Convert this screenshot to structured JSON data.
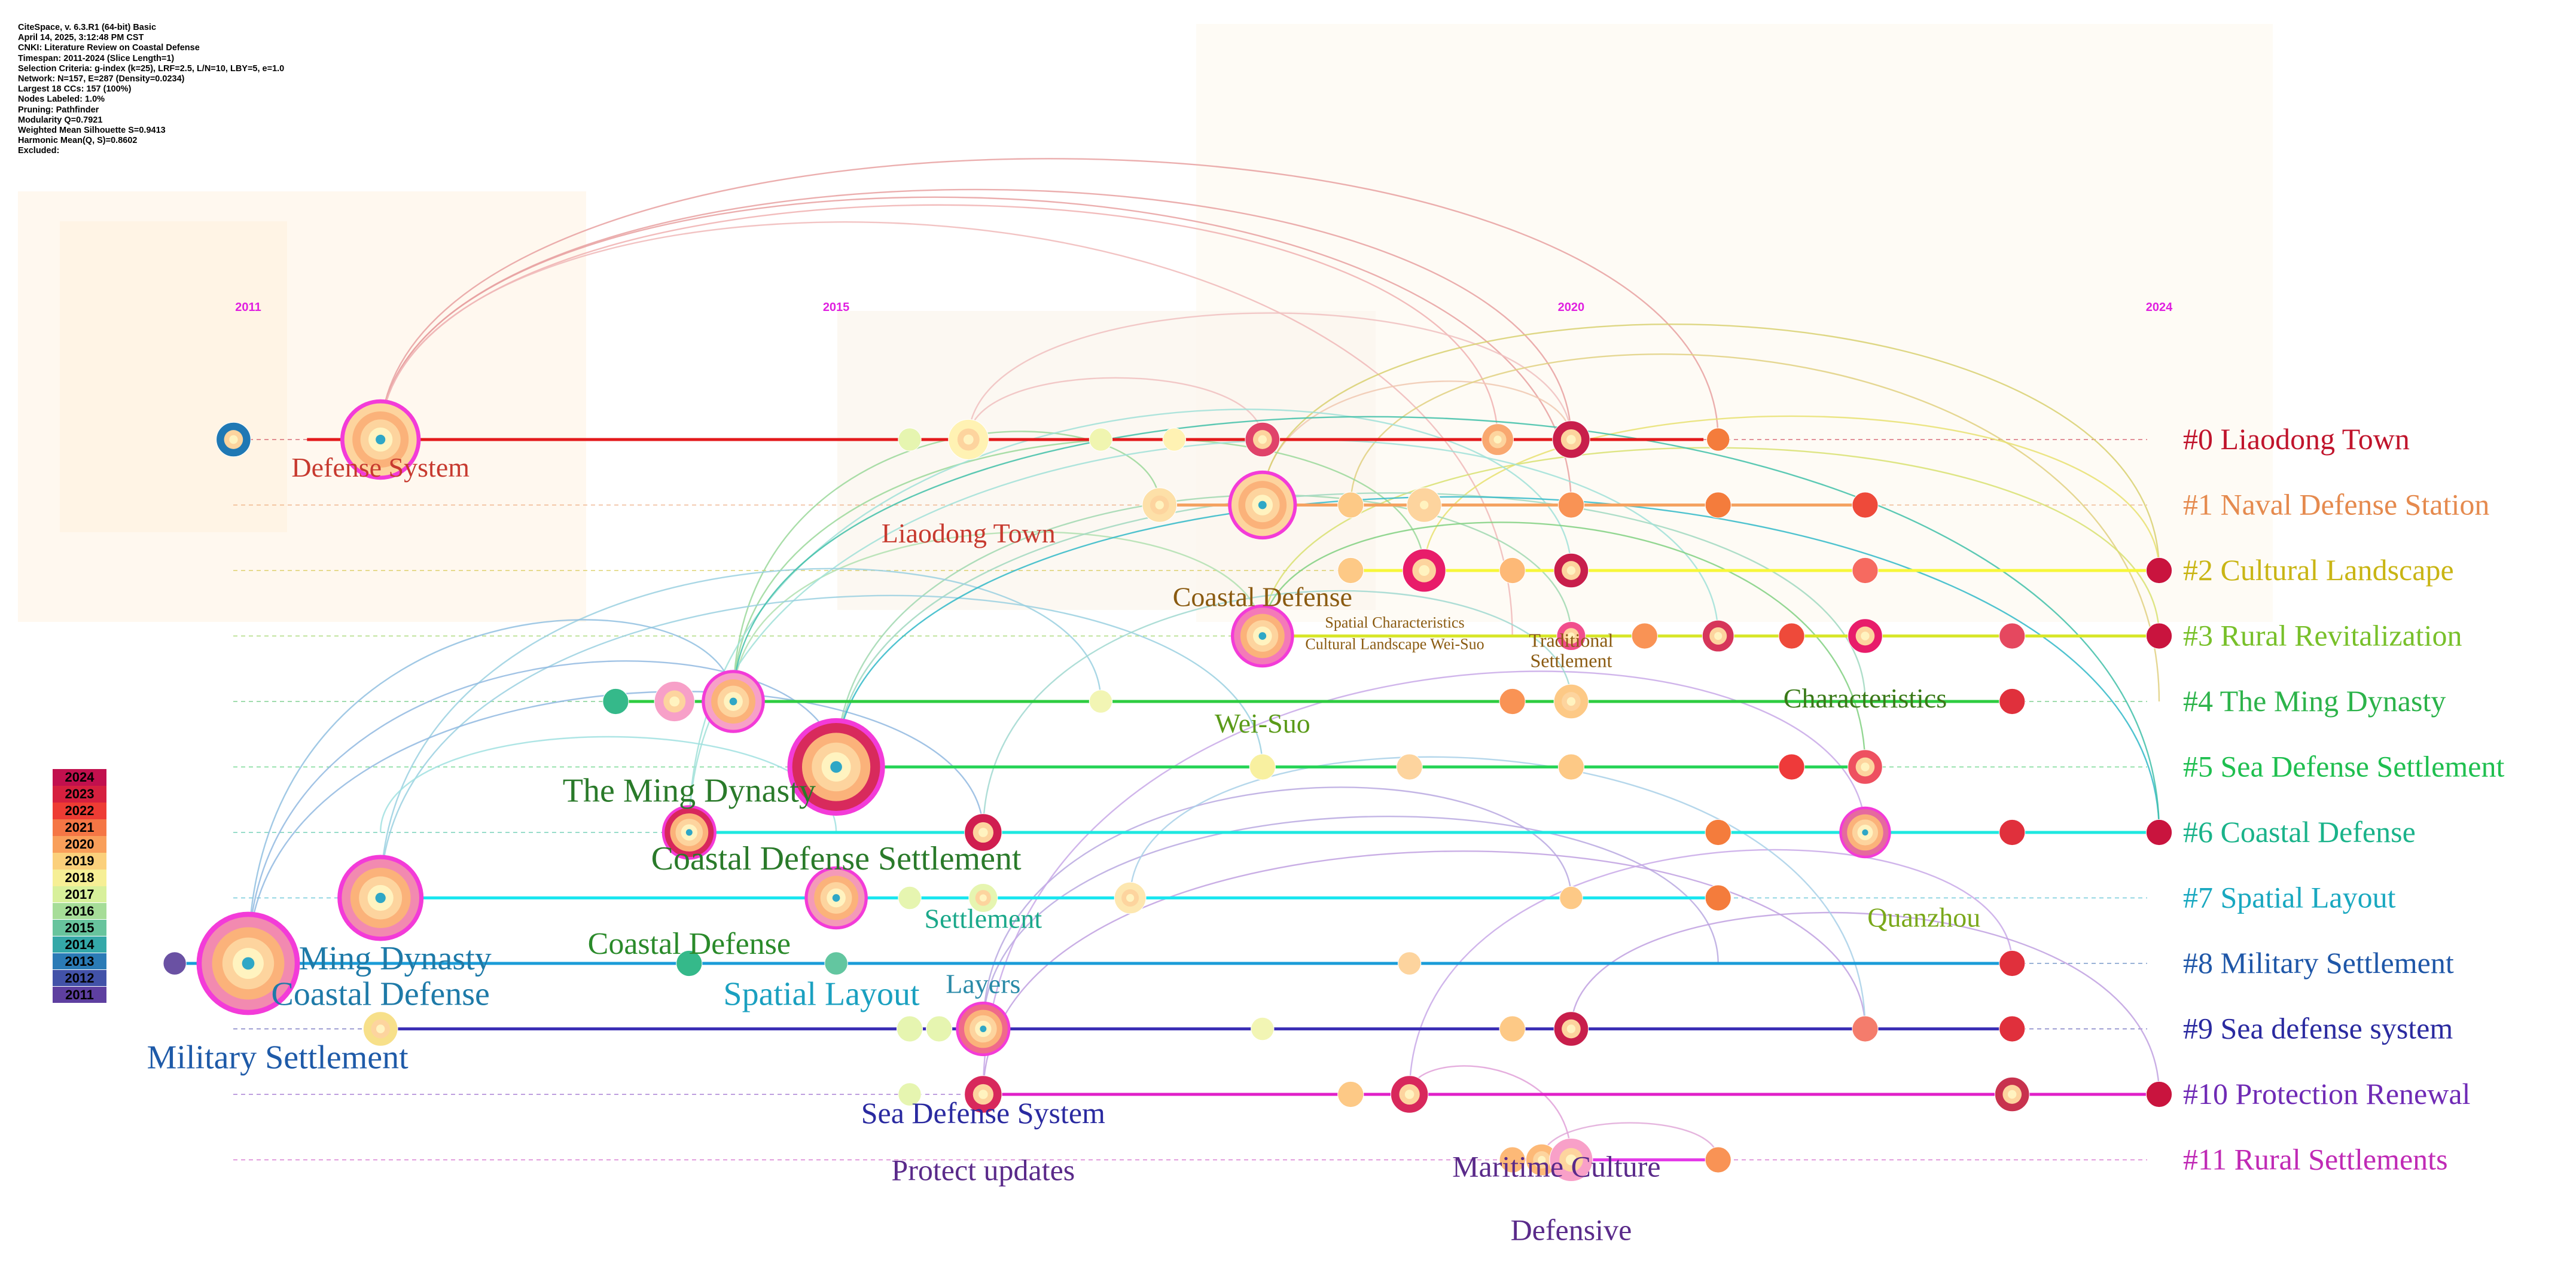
{
  "meta_lines": [
    "CiteSpace, v. 6.3.R1 (64-bit) Basic",
    "April 14, 2025, 3:12:48 PM CST",
    "CNKI: Literature Review on Coastal Defense",
    "Timespan: 2011-2024 (Slice Length=1)",
    "Selection Criteria: g-index (k=25), LRF=2.5, L/N=10, LBY=5, e=1.0",
    "Network: N=157, E=287 (Density=0.0234)",
    "Largest 18 CCs: 157 (100%)",
    "Nodes Labeled: 1.0%",
    "Pruning: Pathfinder",
    "Modularity Q=0.7921",
    "Weighted Mean Silhouette S=0.9413",
    "Harmonic Mean(Q, S)=0.8602",
    "Excluded:"
  ],
  "chart_data": {
    "type": "timeline",
    "x_ticks": [
      2011,
      2015,
      2020,
      2024
    ],
    "xlim": [
      2011,
      2024
    ],
    "clusters": [
      {
        "id": "#0 Liaodong Town",
        "color": "#c0142c"
      },
      {
        "id": "#1 Naval Defense Station",
        "color": "#e58a4e"
      },
      {
        "id": "#2 Cultural Landscape",
        "color": "#c9b514"
      },
      {
        "id": "#3 Rural Revitalization",
        "color": "#78c02a"
      },
      {
        "id": "#4 The Ming Dynasty",
        "color": "#2cb34a"
      },
      {
        "id": "#5 Sea Defense Settlement",
        "color": "#1fbf4f"
      },
      {
        "id": "#6 Coastal Defense",
        "color": "#1ab38a"
      },
      {
        "id": "#7 Spatial Layout",
        "color": "#19a8c0"
      },
      {
        "id": "#8 Military Settlement",
        "color": "#1f57a8"
      },
      {
        "id": "#9 Sea defense system",
        "color": "#2a2aa0"
      },
      {
        "id": "#10 Protection Renewal",
        "color": "#6f2ab5"
      },
      {
        "id": "#11 Rural Settlements",
        "color": "#c02ab5"
      }
    ],
    "rows": [
      {
        "line": "#e31a1c",
        "from": 2011.4,
        "to": 2020.9,
        "nodes": [
          [
            2010.9,
            "#1f78b4",
            12
          ],
          [
            2011.9,
            "#fdd49e",
            28
          ],
          [
            2015.5,
            "#e6f5b0",
            8
          ],
          [
            2015.9,
            "#fff2b3",
            14
          ],
          [
            2016.8,
            "#f0f5b0",
            8
          ],
          [
            2017.3,
            "#fff2b3",
            8
          ],
          [
            2017.9,
            "#e0436a",
            12
          ],
          [
            2019.5,
            "#f9a870",
            11
          ],
          [
            2020.0,
            "#c81e4b",
            13
          ],
          [
            2021.0,
            "#f47c3c",
            8
          ]
        ]
      },
      {
        "line": "#f4a261",
        "from": 2017.1,
        "to": 2022.0,
        "nodes": [
          [
            2017.2,
            "#fde0a8",
            12
          ],
          [
            2017.9,
            "#fdd49e",
            24
          ],
          [
            2018.5,
            "#fdc986",
            9
          ],
          [
            2019.0,
            "#fdd49e",
            12
          ],
          [
            2020.0,
            "#f99355",
            9
          ],
          [
            2021.0,
            "#f47c3c",
            9
          ],
          [
            2022.0,
            "#ee4a3a",
            9
          ]
        ]
      },
      {
        "line": "#f7f73a",
        "from": 2018.5,
        "to": 2024.0,
        "nodes": [
          [
            2018.5,
            "#fdc986",
            9
          ],
          [
            2019.0,
            "#e81c6a",
            15
          ],
          [
            2019.6,
            "#fdb977",
            9
          ],
          [
            2020.0,
            "#c81e4b",
            12
          ],
          [
            2022.0,
            "#f66a60",
            9
          ],
          [
            2024.0,
            "#c9143e",
            9
          ]
        ]
      },
      {
        "line": "#d8e62a",
        "from": 2017.9,
        "to": 2024.0,
        "nodes": [
          [
            2017.9,
            "#f47ab8",
            22
          ],
          [
            2020.0,
            "#f14e8c",
            10
          ],
          [
            2020.5,
            "#f99355",
            9
          ],
          [
            2021.0,
            "#d6365a",
            11
          ],
          [
            2021.5,
            "#ee4a3a",
            9
          ],
          [
            2022.0,
            "#e81c6a",
            12
          ],
          [
            2023.0,
            "#e5485f",
            9
          ],
          [
            2024.0,
            "#c9143e",
            9
          ]
        ]
      },
      {
        "line": "#2ecc40",
        "from": 2013.5,
        "to": 2023.0,
        "nodes": [
          [
            2013.5,
            "#35b98a",
            9
          ],
          [
            2013.9,
            "#f7a0c8",
            14
          ],
          [
            2014.3,
            "#f7a0c8",
            22
          ],
          [
            2016.8,
            "#f2f5b4",
            8
          ],
          [
            2019.6,
            "#f99355",
            9
          ],
          [
            2020.0,
            "#fdc986",
            12
          ],
          [
            2023.0,
            "#e0303c",
            9
          ]
        ]
      },
      {
        "line": "#28d458",
        "from": 2015.0,
        "to": 2022.0,
        "nodes": [
          [
            2015.0,
            "#d82a5c",
            34
          ],
          [
            2017.9,
            "#f8f0a0",
            9
          ],
          [
            2018.9,
            "#fdd49e",
            9
          ],
          [
            2020.0,
            "#fdc986",
            9
          ],
          [
            2021.5,
            "#ee3a3a",
            9
          ],
          [
            2022.0,
            "#ee5060",
            12
          ]
        ]
      },
      {
        "line": "#1ee8e0",
        "from": 2014.0,
        "to": 2024.0,
        "nodes": [
          [
            2014.0,
            "#d8275c",
            19
          ],
          [
            2016.0,
            "#d01e50",
            13
          ],
          [
            2021.0,
            "#f47c3c",
            9
          ],
          [
            2022.0,
            "#e56a9e",
            18
          ],
          [
            2023.0,
            "#e0303c",
            9
          ],
          [
            2024.0,
            "#c9143e",
            9
          ]
        ]
      },
      {
        "line": "#1ae6f0",
        "from": 2011.9,
        "to": 2021.0,
        "nodes": [
          [
            2011.9,
            "#f28ab0",
            30
          ],
          [
            2015.0,
            "#f49ab8",
            22
          ],
          [
            2015.5,
            "#e6f5b0",
            8
          ],
          [
            2016.0,
            "#e6f5b0",
            10
          ],
          [
            2017.0,
            "#fde7b0",
            11
          ],
          [
            2020.0,
            "#fdc986",
            8
          ],
          [
            2021.0,
            "#f47c3c",
            9
          ]
        ]
      },
      {
        "line": "#1a9cd8",
        "from": 2010.5,
        "to": 2023.0,
        "nodes": [
          [
            2010.5,
            "#6a51a3",
            8
          ],
          [
            2011.0,
            "#f28ab0",
            36
          ],
          [
            2014.0,
            "#35b98a",
            9
          ],
          [
            2015.0,
            "#63c6a0",
            8
          ],
          [
            2018.9,
            "#fdd49e",
            8
          ],
          [
            2023.0,
            "#e0303c",
            9
          ]
        ]
      },
      {
        "line": "#3b2fb5",
        "from": 2011.9,
        "to": 2023.0,
        "nodes": [
          [
            2011.9,
            "#f7e08a",
            12
          ],
          [
            2015.5,
            "#e6f5b0",
            9
          ],
          [
            2015.7,
            "#e6f5b0",
            9
          ],
          [
            2016.0,
            "#f06a8a",
            19
          ],
          [
            2017.9,
            "#f2f5b4",
            8
          ],
          [
            2019.6,
            "#fdc986",
            9
          ],
          [
            2020.0,
            "#c81e4b",
            12
          ],
          [
            2022.0,
            "#f47c6c",
            9
          ],
          [
            2023.0,
            "#e0303c",
            9
          ]
        ]
      },
      {
        "line": "#e020c8",
        "from": 2016.0,
        "to": 2024.0,
        "nodes": [
          [
            2015.5,
            "#e6f5b0",
            8
          ],
          [
            2016.0,
            "#d8285c",
            13
          ],
          [
            2018.5,
            "#fdc986",
            9
          ],
          [
            2018.9,
            "#d8285c",
            13
          ],
          [
            2023.0,
            "#c8324e",
            12
          ],
          [
            2024.0,
            "#c9143e",
            9
          ]
        ]
      },
      {
        "line": "#e43ae8",
        "from": 2019.6,
        "to": 2021.0,
        "nodes": [
          [
            2019.6,
            "#fdb977",
            9
          ],
          [
            2019.8,
            "#fdb977",
            11
          ],
          [
            2020.0,
            "#f8a0c8",
            15
          ],
          [
            2021.0,
            "#f99355",
            9
          ]
        ]
      }
    ],
    "node_labels": [
      {
        "text": "Defense System",
        "year": 2011.9,
        "row": 0,
        "dy": 62,
        "size": 46,
        "color": "#c73a2f"
      },
      {
        "text": "Liaodong Town",
        "year": 2015.9,
        "row": 0,
        "dy": 172,
        "size": 46,
        "color": "#c73a2f"
      },
      {
        "text": "Coastal Defense",
        "year": 2017.9,
        "row": 3,
        "dy": -50,
        "size": 46,
        "color": "#8a5a10"
      },
      {
        "text": "Spatial Characteristics",
        "year": 2018.8,
        "row": 3,
        "dy": -14,
        "size": 26,
        "color": "#8a5a10"
      },
      {
        "text": "Cultural Landscape Wei-Suo",
        "year": 2018.8,
        "row": 3,
        "dy": 22,
        "size": 26,
        "color": "#8a5a10"
      },
      {
        "text": "Traditional",
        "year": 2020.0,
        "row": 3,
        "dy": 18,
        "size": 32,
        "color": "#8a5a10"
      },
      {
        "text": "Settlement",
        "year": 2020.0,
        "row": 3,
        "dy": 52,
        "size": 32,
        "color": "#8a5a10"
      },
      {
        "text": "Wei-Suo",
        "year": 2017.9,
        "row": 4,
        "dy": 52,
        "size": 46,
        "color": "#5a9a18"
      },
      {
        "text": "Characteristics",
        "year": 2022.0,
        "row": 4,
        "dy": 10,
        "size": 46,
        "color": "#3a7a18"
      },
      {
        "text": "The Ming Dynasty",
        "year": 2014.0,
        "row": 5,
        "dy": 58,
        "size": 56,
        "color": "#2a7a2a"
      },
      {
        "text": "Coastal Defense Settlement",
        "year": 2015.0,
        "row": 6,
        "dy": 62,
        "size": 56,
        "color": "#2a7a2a"
      },
      {
        "text": "Settlement",
        "year": 2016.0,
        "row": 7,
        "dy": 50,
        "size": 46,
        "color": "#1aa88a"
      },
      {
        "text": "Quanzhou",
        "year": 2022.4,
        "row": 7,
        "dy": 48,
        "size": 46,
        "color": "#7aa81a"
      },
      {
        "text": "Ming Dynasty",
        "year": 2012.0,
        "row": 8,
        "dy": 10,
        "size": 56,
        "color": "#1e7aa8"
      },
      {
        "text": "Coastal Defense",
        "year": 2014.0,
        "row": 8,
        "dy": -16,
        "size": 52,
        "color": "#2a8a2a"
      },
      {
        "text": "Coastal Defense",
        "year": 2011.9,
        "row": 9,
        "dy": -40,
        "size": 56,
        "color": "#1e7aa8"
      },
      {
        "text": "Spatial Layout",
        "year": 2014.9,
        "row": 9,
        "dy": -40,
        "size": 56,
        "color": "#1aa0c0"
      },
      {
        "text": "Layers",
        "year": 2016.0,
        "row": 9,
        "dy": -60,
        "size": 46,
        "color": "#2a8aa8"
      },
      {
        "text": "Military Settlement",
        "year": 2011.2,
        "row": 9,
        "dy": 66,
        "size": 56,
        "color": "#1e5aa8"
      },
      {
        "text": "Sea Defense System",
        "year": 2016.0,
        "row": 10,
        "dy": 48,
        "size": 50,
        "color": "#2a2aa0"
      },
      {
        "text": "Protect updates",
        "year": 2016.0,
        "row": 11,
        "dy": 34,
        "size": 50,
        "color": "#5a2a8a"
      },
      {
        "text": "Maritime Culture",
        "year": 2019.9,
        "row": 11,
        "dy": 28,
        "size": 50,
        "color": "#5a2a8a"
      },
      {
        "text": "Defensive",
        "year": 2020.0,
        "row": 11,
        "dy": 134,
        "size": 50,
        "color": "#5a2a8a"
      }
    ],
    "links": [
      [
        0,
        2011.9,
        0,
        2021.0,
        "#e8a0a0"
      ],
      [
        0,
        2011.9,
        0,
        2020.0,
        "#e8a0a0"
      ],
      [
        0,
        2011.9,
        1,
        2020.0,
        "#e8a0a0"
      ],
      [
        0,
        2011.9,
        0,
        2019.5,
        "#f0b0b0"
      ],
      [
        0,
        2011.9,
        3,
        2019.6,
        "#f0b8b8"
      ],
      [
        0,
        2015.9,
        0,
        2017.9,
        "#f0c0c0"
      ],
      [
        0,
        2015.9,
        0,
        2020.0,
        "#f0c0c0"
      ],
      [
        1,
        2017.9,
        0,
        2020.0,
        "#f0c8b0"
      ],
      [
        1,
        2017.9,
        2,
        2024.0,
        "#d8d070"
      ],
      [
        1,
        2018.5,
        4,
        2024.0,
        "#e0d080"
      ],
      [
        2,
        2019.0,
        2,
        2024.0,
        "#e8e070"
      ],
      [
        3,
        2017.9,
        3,
        2024.0,
        "#d8e070"
      ],
      [
        4,
        2014.3,
        1,
        2017.2,
        "#9ad89a"
      ],
      [
        4,
        2014.3,
        2,
        2019.0,
        "#9ad89a"
      ],
      [
        4,
        2014.3,
        3,
        2017.9,
        "#b0e0b0"
      ],
      [
        5,
        2015.0,
        3,
        2020.0,
        "#a0d8b0"
      ],
      [
        5,
        2015.0,
        4,
        2022.0,
        "#a0d8c0"
      ],
      [
        6,
        2014.0,
        2,
        2020.0,
        "#a0e0d8"
      ],
      [
        6,
        2014.0,
        3,
        2021.0,
        "#a0e0d8"
      ],
      [
        7,
        2011.9,
        4,
        2016.8,
        "#9ad0e0"
      ],
      [
        7,
        2011.9,
        5,
        2017.9,
        "#9ad0e0"
      ],
      [
        8,
        2011.0,
        6,
        2016.0,
        "#90b8e0"
      ],
      [
        8,
        2011.0,
        5,
        2015.0,
        "#90b8e0"
      ],
      [
        8,
        2011.0,
        4,
        2014.3,
        "#90c0e0"
      ],
      [
        9,
        2016.0,
        7,
        2020.0,
        "#b8a8e0"
      ],
      [
        9,
        2016.0,
        8,
        2021.0,
        "#b8a8e0"
      ],
      [
        10,
        2016.0,
        9,
        2022.0,
        "#c0a0e0"
      ],
      [
        10,
        2016.0,
        6,
        2022.0,
        "#c8a8e8"
      ],
      [
        10,
        2018.9,
        8,
        2023.0,
        "#c8a8e8"
      ],
      [
        9,
        2020.0,
        10,
        2024.0,
        "#c0a0e0"
      ],
      [
        7,
        2017.0,
        9,
        2022.0,
        "#a8d0e8"
      ],
      [
        6,
        2016.0,
        4,
        2020.0,
        "#a0d8d0"
      ],
      [
        5,
        2015.0,
        6,
        2024.0,
        "#30b8c8"
      ],
      [
        4,
        2014.3,
        6,
        2024.0,
        "#40c0a8"
      ],
      [
        3,
        2017.9,
        5,
        2022.0,
        "#80d080"
      ],
      [
        11,
        2020.0,
        10,
        2018.9,
        "#e0a0d8"
      ],
      [
        11,
        2019.8,
        11,
        2021.0,
        "#e0a8d8"
      ],
      [
        6,
        2011.9,
        6,
        2015.0,
        "#a0e0e0"
      ]
    ]
  }
}
